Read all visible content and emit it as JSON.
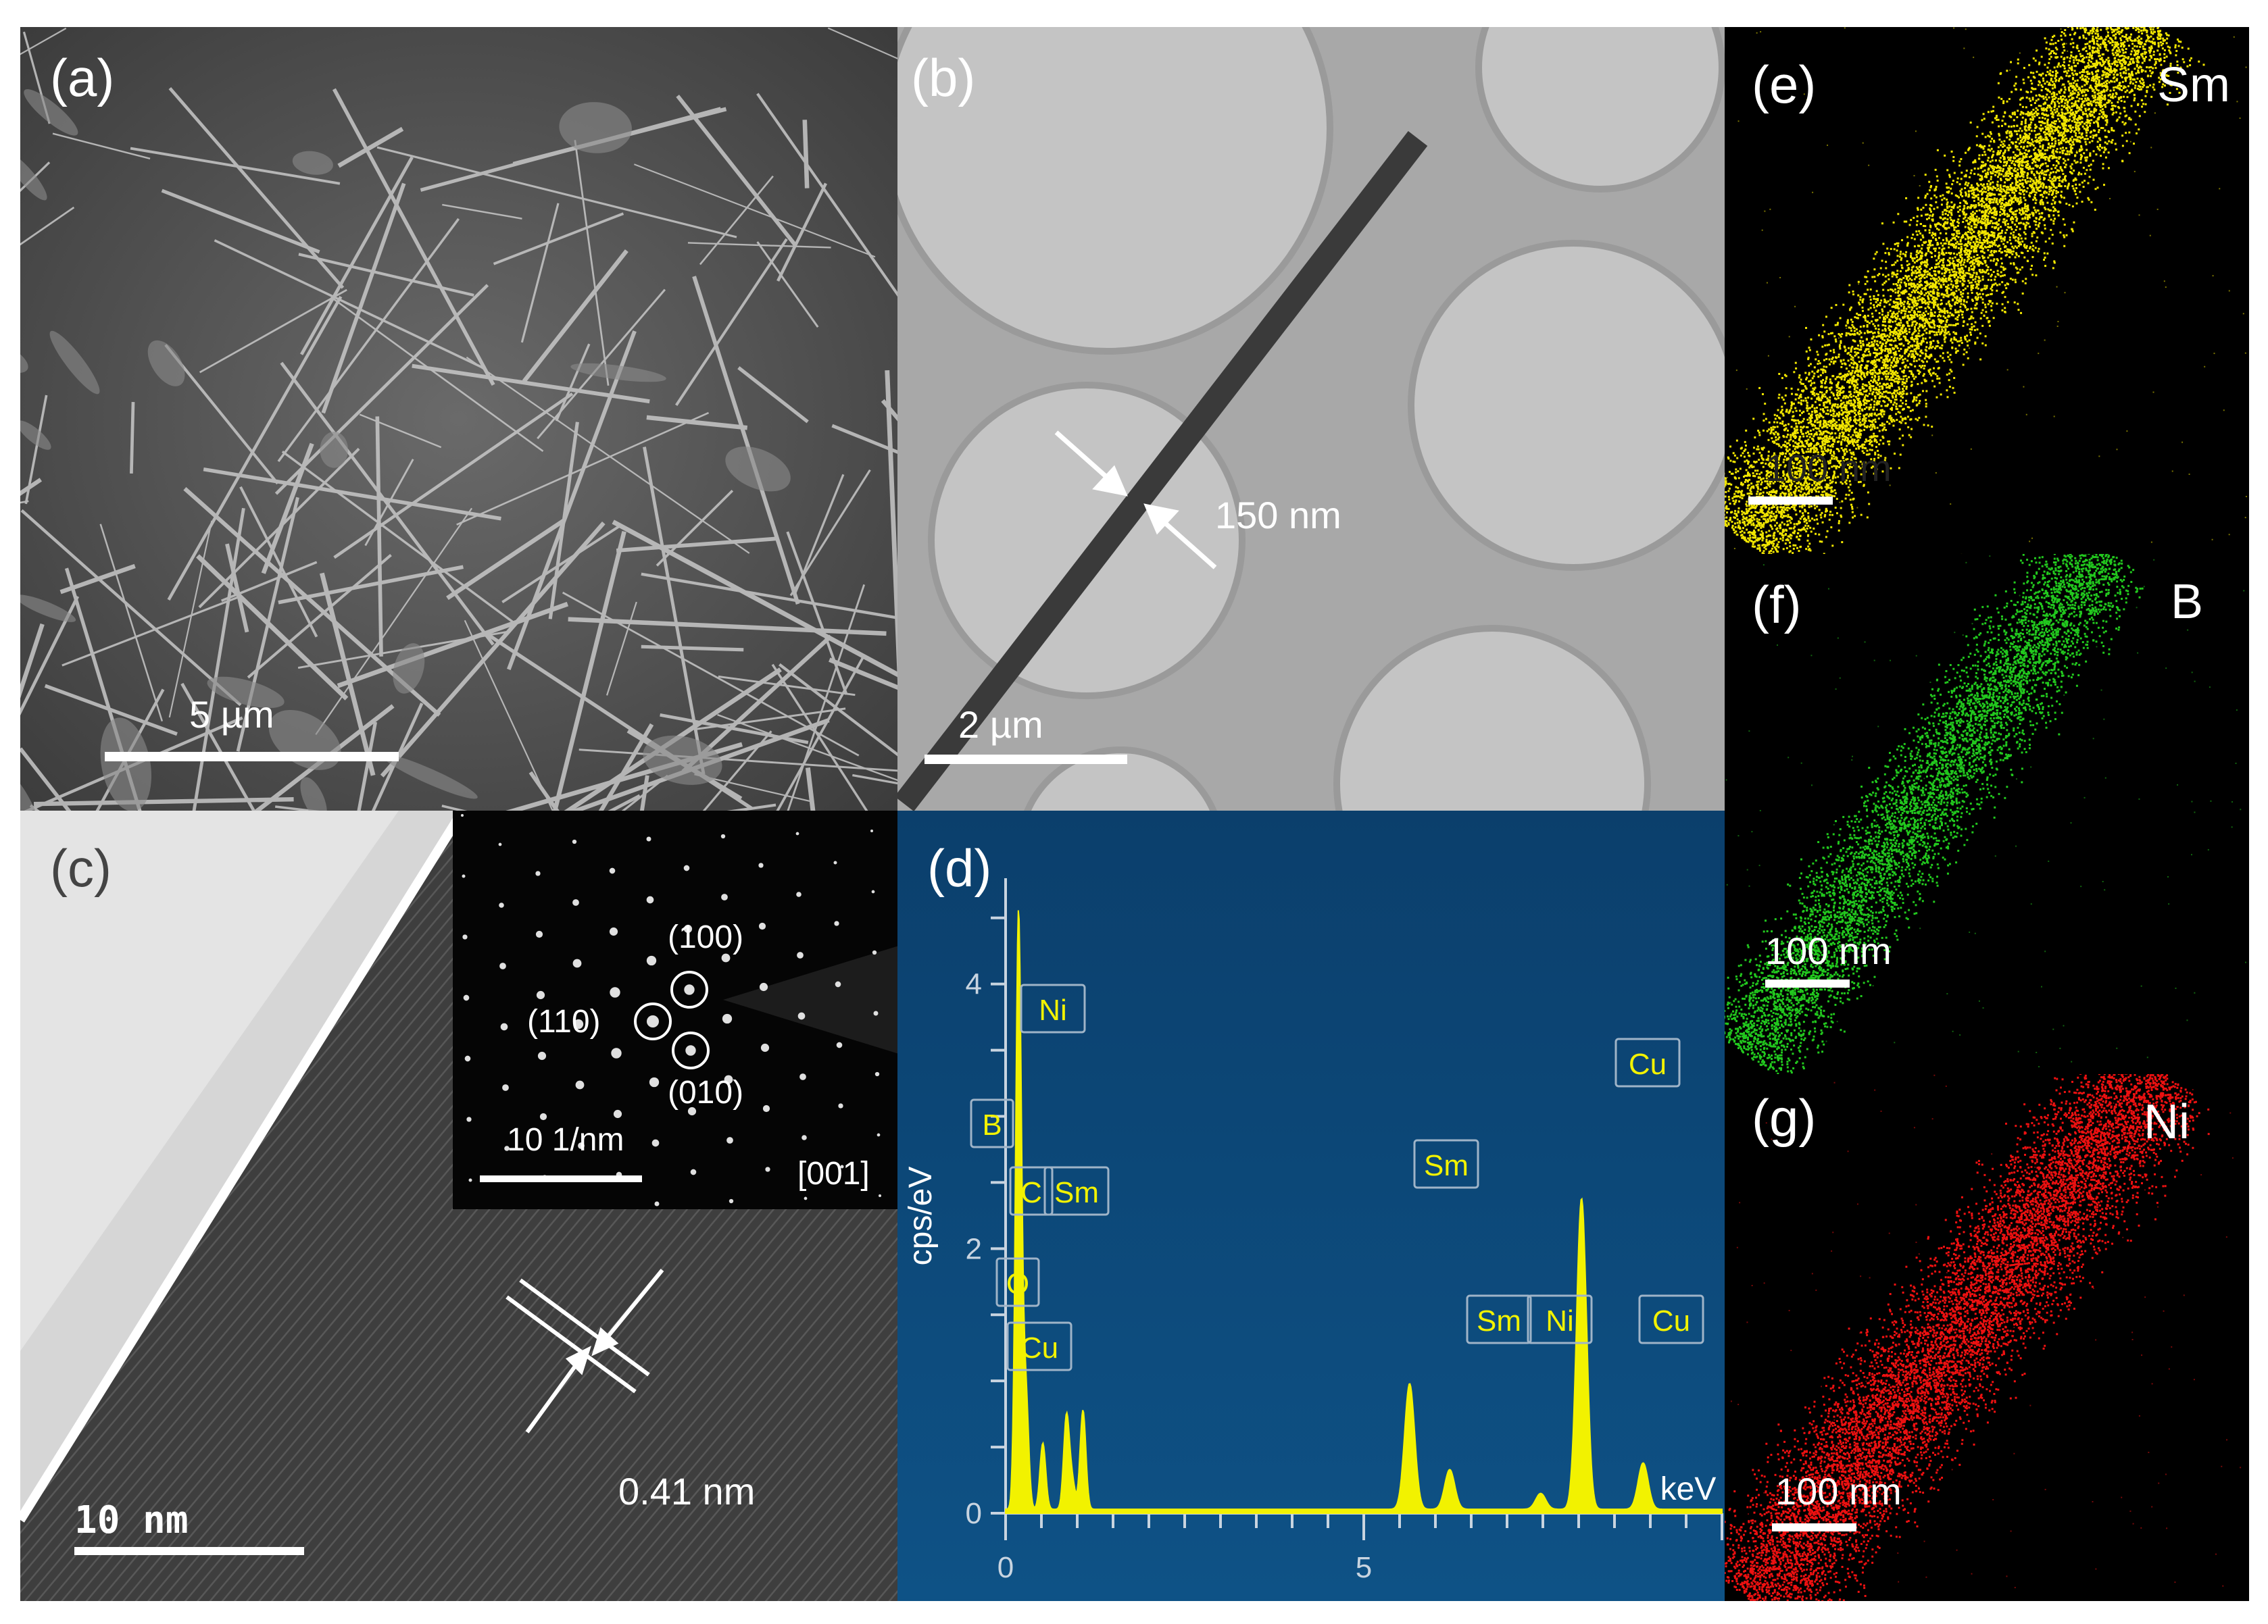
{
  "panels": {
    "a": {
      "label": "(a)",
      "scale": "5 µm"
    },
    "b": {
      "label": "(b)",
      "scale": "2 µm",
      "width": "150 nm"
    },
    "c": {
      "label": "(c)",
      "scale": "10 nm",
      "spacing": "0.41 nm",
      "inset": {
        "scale": "10 1/nm",
        "zone": "[001]",
        "spots": [
          "(100)",
          "(110)",
          "(010)"
        ]
      }
    },
    "d": {
      "label": "(d)"
    },
    "e": {
      "label": "(e)",
      "element": "Sm",
      "scale": "100 nm",
      "color": "#f2e600"
    },
    "f": {
      "label": "(f)",
      "element": "B",
      "scale": "100 nm",
      "color": "#22c81e"
    },
    "g": {
      "label": "(g)",
      "element": "Ni",
      "scale": "100 nm",
      "color": "#ee1111"
    }
  },
  "chart_data": {
    "type": "area",
    "ylabel": "cps/eV",
    "xunit": "keV",
    "xlim": [
      0,
      10
    ],
    "ylim": [
      0,
      4.8
    ],
    "xticks": [
      0,
      5
    ],
    "yticks": [
      0,
      2,
      4
    ],
    "line_color": "#f2f200",
    "background": "#0d4a7a",
    "peaks": [
      {
        "label": "B",
        "x": 0.18,
        "y": 4.5
      },
      {
        "label": "C",
        "x": 0.28,
        "y": 0.9
      },
      {
        "label": "O",
        "x": 0.52,
        "y": 0.5
      },
      {
        "label": "Ni",
        "x": 0.85,
        "y": 0.7
      },
      {
        "label": "Sm",
        "x": 1.08,
        "y": 0.75
      },
      {
        "label": "Cu",
        "x": 0.93,
        "y": 0.2
      },
      {
        "label": "Sm",
        "x": 5.64,
        "y": 0.95
      },
      {
        "label": "Sm",
        "x": 6.2,
        "y": 0.3
      },
      {
        "label": "Ni",
        "x": 7.47,
        "y": 0.12
      },
      {
        "label": "Cu",
        "x": 8.04,
        "y": 2.35
      },
      {
        "label": "Cu",
        "x": 8.9,
        "y": 0.35
      }
    ]
  }
}
